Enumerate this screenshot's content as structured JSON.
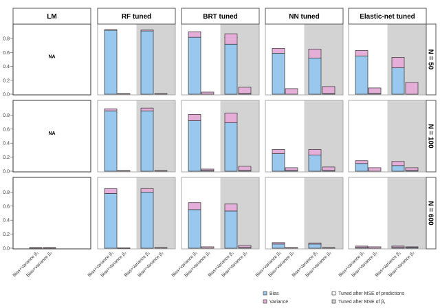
{
  "chart_data": {
    "type": "bar",
    "stacked": true,
    "facets_columns": [
      "LM",
      "RF tuned",
      "BRT tuned",
      "NN tuned",
      "Elastic-net tuned"
    ],
    "facets_rows": [
      "N = 50",
      "N = 100",
      "N = 600"
    ],
    "categories": [
      "Bias+Variance β₁",
      "Bias+Variance β₂",
      "Bias+Variance β₁",
      "Bias+Variance β₂"
    ],
    "tuning_groups": [
      "Tuned after MSE of predictions",
      "Tuned after MSE of predictions",
      "Tuned after MSE of β₁",
      "Tuned after MSE of β₁"
    ],
    "ylim": [
      0,
      1.0
    ],
    "yticks": [
      "0.0",
      "0.2",
      "0.4",
      "0.6",
      "0.8"
    ],
    "na_label": "NA",
    "colors": {
      "Bias": "#99c8ee",
      "Variance": "#e4aed8",
      "tuned_beta_background": "#d3d3d3",
      "tuned_pred_background": "#ffffff"
    },
    "legend": {
      "components": [
        "Bias",
        "Variance"
      ],
      "tuning": [
        "Tuned after MSE of predictions",
        "Tuned after MSE of β₁"
      ],
      "placement": "bottom-right"
    },
    "panels": {
      "N = 50": {
        "LM": null,
        "RF tuned": {
          "bias": [
            0.92,
            0.0,
            0.91,
            0.0
          ],
          "variance": [
            0.01,
            0.01,
            0.015,
            0.01
          ]
        },
        "BRT tuned": {
          "bias": [
            0.82,
            0.0,
            0.72,
            0.01
          ],
          "variance": [
            0.08,
            0.03,
            0.15,
            0.09
          ]
        },
        "NN tuned": {
          "bias": [
            0.59,
            0.0,
            0.52,
            0.01
          ],
          "variance": [
            0.07,
            0.08,
            0.13,
            0.1
          ]
        },
        "Elastic-net tuned": {
          "bias": [
            0.55,
            0.01,
            0.38,
            0.0
          ],
          "variance": [
            0.08,
            0.08,
            0.15,
            0.17
          ]
        }
      },
      "N = 100": {
        "LM": null,
        "RF tuned": {
          "bias": [
            0.86,
            0.0,
            0.86,
            0.0
          ],
          "variance": [
            0.03,
            0.01,
            0.04,
            0.01
          ]
        },
        "BRT tuned": {
          "bias": [
            0.72,
            0.01,
            0.69,
            0.01
          ],
          "variance": [
            0.09,
            0.02,
            0.14,
            0.06
          ]
        },
        "NN tuned": {
          "bias": [
            0.25,
            0.01,
            0.23,
            0.01
          ],
          "variance": [
            0.06,
            0.04,
            0.08,
            0.05
          ]
        },
        "Elastic-net tuned": {
          "bias": [
            0.11,
            0.0,
            0.08,
            0.01
          ],
          "variance": [
            0.04,
            0.05,
            0.06,
            0.04
          ]
        }
      },
      "N = 600": {
        "LM": {
          "bias": [
            0.0,
            0.0
          ],
          "variance": [
            0.01,
            0.01
          ]
        },
        "RF tuned": {
          "bias": [
            0.78,
            0.0,
            0.8,
            0.0
          ],
          "variance": [
            0.07,
            0.005,
            0.05,
            0.01
          ]
        },
        "BRT tuned": {
          "bias": [
            0.55,
            0.0,
            0.53,
            0.01
          ],
          "variance": [
            0.1,
            0.02,
            0.1,
            0.03
          ]
        },
        "NN tuned": {
          "bias": [
            0.06,
            0.0,
            0.06,
            0.0
          ],
          "variance": [
            0.02,
            0.01,
            0.015,
            0.01
          ]
        },
        "Elastic-net tuned": {
          "bias": [
            0.01,
            0.0,
            0.01,
            0.01
          ],
          "variance": [
            0.02,
            0.02,
            0.02,
            0.01
          ]
        }
      }
    }
  }
}
